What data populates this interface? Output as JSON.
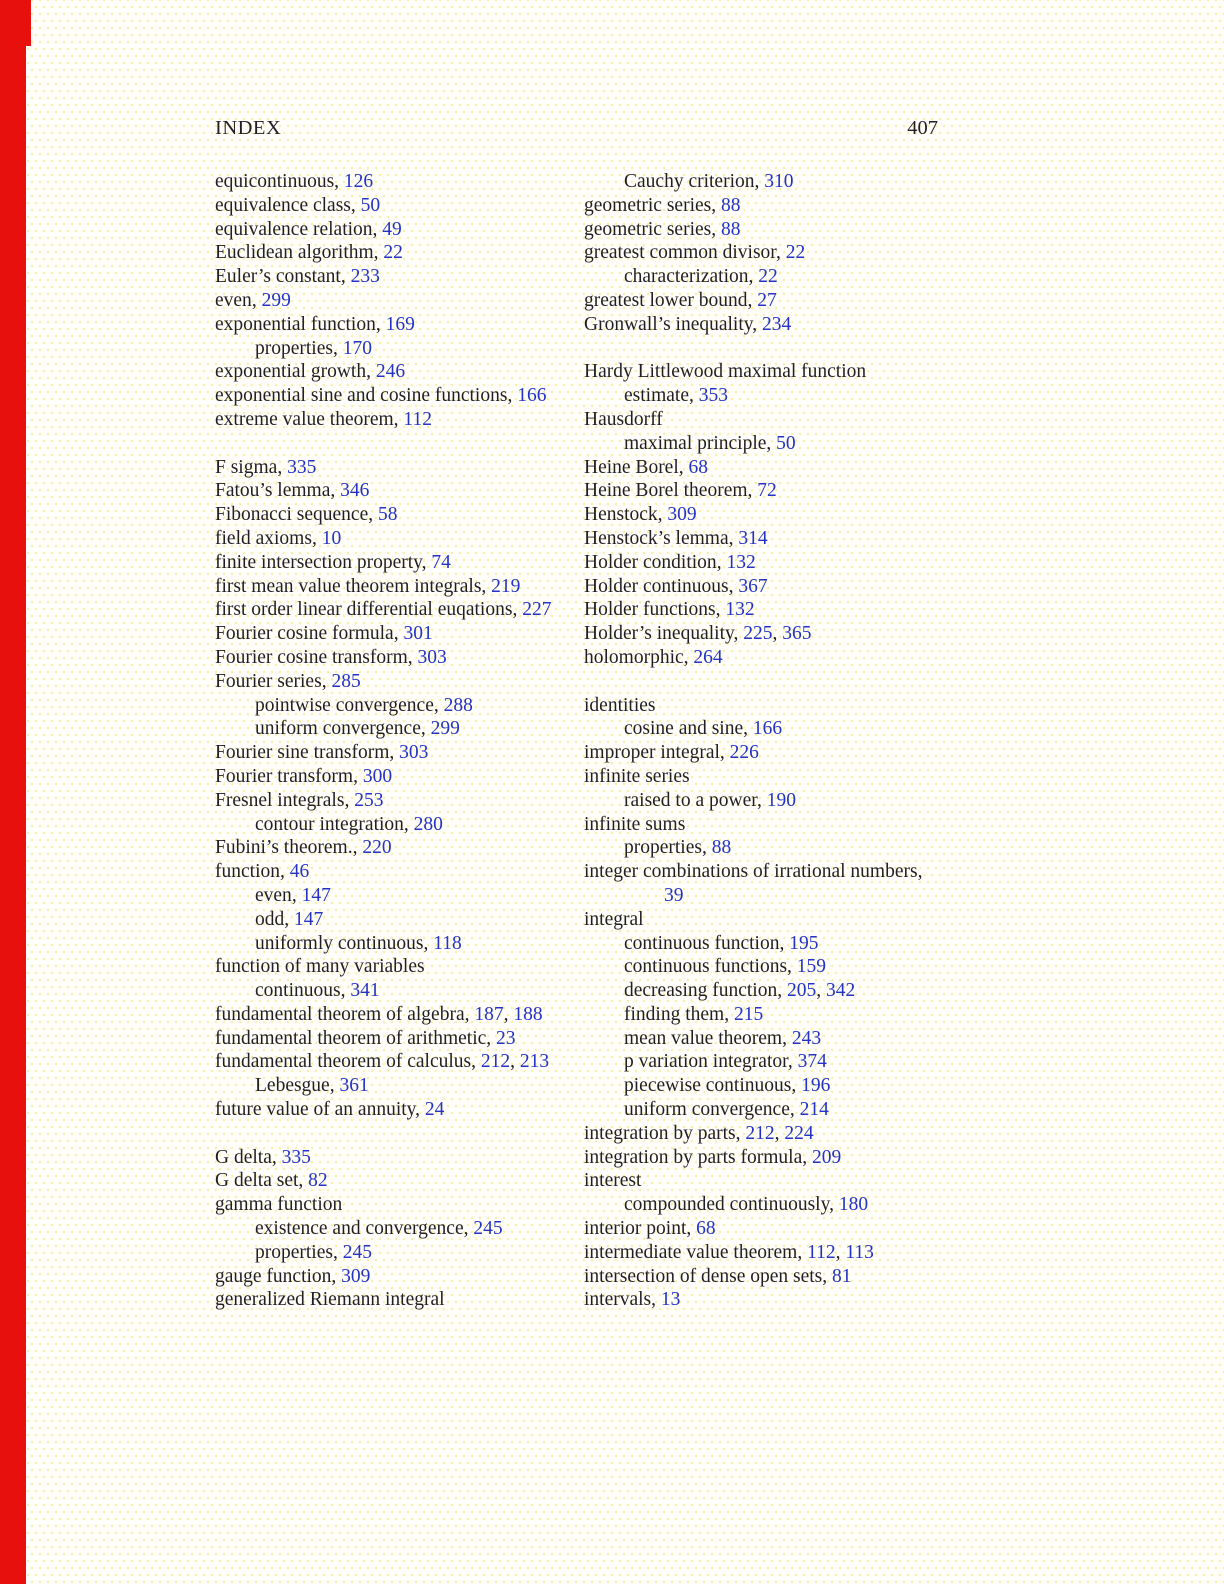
{
  "document": {
    "header": {
      "title": "INDEX",
      "page_number": "407"
    },
    "colors": {
      "page_number_blue": "#2433c4",
      "text": "#211f23",
      "edge_bar_red": "#e8100c",
      "halftone_dot_yellow": "#f4e878"
    },
    "columns": [
      {
        "entries": [
          {
            "indent": 0,
            "term": "equicontinuous",
            "pages": [
              "126"
            ]
          },
          {
            "indent": 0,
            "term": "equivalence class",
            "pages": [
              "50"
            ]
          },
          {
            "indent": 0,
            "term": "equivalence relation",
            "pages": [
              "49"
            ]
          },
          {
            "indent": 0,
            "term": "Euclidean algorithm",
            "pages": [
              "22"
            ]
          },
          {
            "indent": 0,
            "term": "Euler’s constant",
            "pages": [
              "233"
            ]
          },
          {
            "indent": 0,
            "term": "even",
            "pages": [
              "299"
            ]
          },
          {
            "indent": 0,
            "term": "exponential function",
            "pages": [
              "169"
            ]
          },
          {
            "indent": 1,
            "term": "properties",
            "pages": [
              "170"
            ]
          },
          {
            "indent": 0,
            "term": "exponential growth",
            "pages": [
              "246"
            ]
          },
          {
            "indent": 0,
            "term": "exponential sine and cosine functions",
            "pages": [
              "166"
            ]
          },
          {
            "indent": 0,
            "term": "extreme value theorem",
            "pages": [
              "112"
            ]
          },
          {
            "blank": true
          },
          {
            "indent": 0,
            "term": "F sigma",
            "pages": [
              "335"
            ]
          },
          {
            "indent": 0,
            "term": "Fatou’s lemma",
            "pages": [
              "346"
            ]
          },
          {
            "indent": 0,
            "term": "Fibonacci sequence",
            "pages": [
              "58"
            ]
          },
          {
            "indent": 0,
            "term": "field axioms",
            "pages": [
              "10"
            ]
          },
          {
            "indent": 0,
            "term": "finite intersection property",
            "pages": [
              "74"
            ]
          },
          {
            "indent": 0,
            "term": "first mean value theorem integrals",
            "pages": [
              "219"
            ]
          },
          {
            "indent": 0,
            "term": "first order linear differential euqations",
            "pages": [
              "227"
            ]
          },
          {
            "indent": 0,
            "term": "Fourier cosine formula",
            "pages": [
              "301"
            ]
          },
          {
            "indent": 0,
            "term": "Fourier cosine transform",
            "pages": [
              "303"
            ]
          },
          {
            "indent": 0,
            "term": "Fourier series",
            "pages": [
              "285"
            ]
          },
          {
            "indent": 1,
            "term": "pointwise convergence",
            "pages": [
              "288"
            ]
          },
          {
            "indent": 1,
            "term": "uniform convergence",
            "pages": [
              "299"
            ]
          },
          {
            "indent": 0,
            "term": "Fourier sine transform",
            "pages": [
              "303"
            ]
          },
          {
            "indent": 0,
            "term": "Fourier transform",
            "pages": [
              "300"
            ]
          },
          {
            "indent": 0,
            "term": "Fresnel integrals",
            "pages": [
              "253"
            ]
          },
          {
            "indent": 1,
            "term": "contour integration",
            "pages": [
              "280"
            ]
          },
          {
            "indent": 0,
            "term": "Fubini’s theorem.",
            "pages": [
              "220"
            ]
          },
          {
            "indent": 0,
            "term": "function",
            "pages": [
              "46"
            ]
          },
          {
            "indent": 1,
            "term": "even",
            "pages": [
              "147"
            ]
          },
          {
            "indent": 1,
            "term": "odd",
            "pages": [
              "147"
            ]
          },
          {
            "indent": 1,
            "term": "uniformly continuous",
            "pages": [
              "118"
            ]
          },
          {
            "indent": 0,
            "term": "function of many variables",
            "pages": []
          },
          {
            "indent": 1,
            "term": "continuous",
            "pages": [
              "341"
            ]
          },
          {
            "indent": 0,
            "term": "fundamental theorem of algebra",
            "pages": [
              "187",
              "188"
            ]
          },
          {
            "indent": 0,
            "term": "fundamental theorem of arithmetic",
            "pages": [
              "23"
            ]
          },
          {
            "indent": 0,
            "term": "fundamental theorem of calculus",
            "pages": [
              "212",
              "213"
            ]
          },
          {
            "indent": 1,
            "term": "Lebesgue",
            "pages": [
              "361"
            ]
          },
          {
            "indent": 0,
            "term": "future value of an annuity",
            "pages": [
              "24"
            ]
          },
          {
            "blank": true
          },
          {
            "indent": 0,
            "term": "G delta",
            "pages": [
              "335"
            ]
          },
          {
            "indent": 0,
            "term": "G delta set",
            "pages": [
              "82"
            ]
          },
          {
            "indent": 0,
            "term": "gamma function",
            "pages": []
          },
          {
            "indent": 1,
            "term": "existence and convergence",
            "pages": [
              "245"
            ]
          },
          {
            "indent": 1,
            "term": "properties",
            "pages": [
              "245"
            ]
          },
          {
            "indent": 0,
            "term": "gauge function",
            "pages": [
              "309"
            ]
          },
          {
            "indent": 0,
            "term": "generalized Riemann integral",
            "pages": []
          }
        ]
      },
      {
        "entries": [
          {
            "indent": 1,
            "term": "Cauchy criterion",
            "pages": [
              "310"
            ]
          },
          {
            "indent": 0,
            "term": "geometric series",
            "pages": [
              "88"
            ]
          },
          {
            "indent": 0,
            "term": "geometric series",
            "pages": [
              "88"
            ]
          },
          {
            "indent": 0,
            "term": "greatest common divisor",
            "pages": [
              "22"
            ]
          },
          {
            "indent": 1,
            "term": "characterization",
            "pages": [
              "22"
            ]
          },
          {
            "indent": 0,
            "term": "greatest lower bound",
            "pages": [
              "27"
            ]
          },
          {
            "indent": 0,
            "term": "Gronwall’s inequality",
            "pages": [
              "234"
            ]
          },
          {
            "blank": true
          },
          {
            "indent": 0,
            "term": "Hardy Littlewood maximal function",
            "pages": []
          },
          {
            "indent": 1,
            "term": "estimate",
            "pages": [
              "353"
            ]
          },
          {
            "indent": 0,
            "term": "Hausdorff",
            "pages": []
          },
          {
            "indent": 1,
            "term": "maximal principle",
            "pages": [
              "50"
            ]
          },
          {
            "indent": 0,
            "term": "Heine Borel",
            "pages": [
              "68"
            ]
          },
          {
            "indent": 0,
            "term": "Heine Borel theorem",
            "pages": [
              "72"
            ]
          },
          {
            "indent": 0,
            "term": "Henstock",
            "pages": [
              "309"
            ]
          },
          {
            "indent": 0,
            "term": "Henstock’s lemma",
            "pages": [
              "314"
            ]
          },
          {
            "indent": 0,
            "term": "Holder condition",
            "pages": [
              "132"
            ]
          },
          {
            "indent": 0,
            "term": "Holder continuous",
            "pages": [
              "367"
            ]
          },
          {
            "indent": 0,
            "term": "Holder functions",
            "pages": [
              "132"
            ]
          },
          {
            "indent": 0,
            "term": "Holder’s inequality",
            "pages": [
              "225",
              "365"
            ]
          },
          {
            "indent": 0,
            "term": "holomorphic",
            "pages": [
              "264"
            ]
          },
          {
            "blank": true
          },
          {
            "indent": 0,
            "term": "identities",
            "pages": []
          },
          {
            "indent": 1,
            "term": "cosine and sine",
            "pages": [
              "166"
            ]
          },
          {
            "indent": 0,
            "term": "improper integral",
            "pages": [
              "226"
            ]
          },
          {
            "indent": 0,
            "term": "infinite series",
            "pages": []
          },
          {
            "indent": 1,
            "term": "raised to a power",
            "pages": [
              "190"
            ]
          },
          {
            "indent": 0,
            "term": "infinite sums",
            "pages": []
          },
          {
            "indent": 1,
            "term": "properties",
            "pages": [
              "88"
            ]
          },
          {
            "indent": 0,
            "term": "integer combinations of irrational numbers,",
            "pages": []
          },
          {
            "indent": 2,
            "term": "",
            "pages": [
              "39"
            ]
          },
          {
            "indent": 0,
            "term": "integral",
            "pages": []
          },
          {
            "indent": 1,
            "term": "continuous function",
            "pages": [
              "195"
            ]
          },
          {
            "indent": 1,
            "term": "continuous functions",
            "pages": [
              "159"
            ]
          },
          {
            "indent": 1,
            "term": "decreasing function",
            "pages": [
              "205",
              "342"
            ]
          },
          {
            "indent": 1,
            "term": "finding them",
            "pages": [
              "215"
            ]
          },
          {
            "indent": 1,
            "term": "mean value theorem",
            "pages": [
              "243"
            ]
          },
          {
            "indent": 1,
            "term": "p variation integrator",
            "pages": [
              "374"
            ]
          },
          {
            "indent": 1,
            "term": "piecewise continuous",
            "pages": [
              "196"
            ]
          },
          {
            "indent": 1,
            "term": "uniform convergence",
            "pages": [
              "214"
            ]
          },
          {
            "indent": 0,
            "term": "integration by parts",
            "pages": [
              "212",
              "224"
            ]
          },
          {
            "indent": 0,
            "term": "integration by parts formula",
            "pages": [
              "209"
            ]
          },
          {
            "indent": 0,
            "term": "interest",
            "pages": []
          },
          {
            "indent": 1,
            "term": "compounded continuously",
            "pages": [
              "180"
            ]
          },
          {
            "indent": 0,
            "term": "interior point",
            "pages": [
              "68"
            ]
          },
          {
            "indent": 0,
            "term": "intermediate value theorem",
            "pages": [
              "112",
              "113"
            ]
          },
          {
            "indent": 0,
            "term": "intersection of dense open sets",
            "pages": [
              "81"
            ]
          },
          {
            "indent": 0,
            "term": "intervals",
            "pages": [
              "13"
            ]
          }
        ]
      }
    ]
  }
}
